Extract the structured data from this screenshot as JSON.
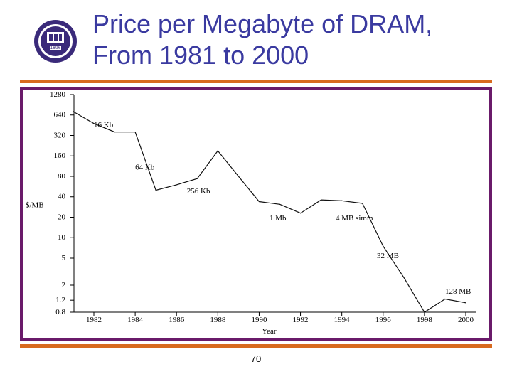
{
  "slide": {
    "title_line1": "Price per Megabyte of DRAM,",
    "title_line2": "From 1981 to 2000",
    "page_number": "70",
    "logo_text": "1896",
    "colors": {
      "title": "#3a3aa0",
      "rule": "#d86a1e",
      "frame": "#6a1a6a",
      "logo": "#3a2a7a"
    }
  },
  "chart_data": {
    "type": "line",
    "title": "",
    "xlabel": "Year",
    "ylabel": "$/MB",
    "y_scale": "log2",
    "xlim": [
      1981,
      2000
    ],
    "ylim": [
      0.8,
      1280
    ],
    "x_ticks": [
      1982,
      1984,
      1986,
      1988,
      1990,
      1992,
      1994,
      1996,
      1998,
      2000
    ],
    "y_ticks": [
      1280,
      640,
      320,
      160,
      80,
      40,
      20,
      10,
      5,
      2,
      1.2,
      0.8
    ],
    "y_tick_labels": [
      "1280",
      "640",
      "320",
      "160",
      "80",
      "40",
      "20",
      "10",
      "5",
      "2",
      "1.2",
      "0.8"
    ],
    "grid": false,
    "series": [
      {
        "x": [
          1981,
          1982,
          1983,
          1984,
          1985,
          1986,
          1987,
          1988,
          1989,
          1990,
          1991,
          1992,
          1993,
          1994,
          1995,
          1996,
          1997,
          1998,
          1999,
          2000
        ],
        "y": [
          720,
          480,
          360,
          360,
          50,
          60,
          74,
          190,
          80,
          34,
          31,
          23,
          36,
          35,
          32,
          7.5,
          2.6,
          0.8,
          1.25,
          1.1
        ]
      }
    ],
    "annotations": [
      {
        "text": "16 Kb",
        "x": 1982,
        "y": 420
      },
      {
        "text": "64 Kb",
        "x": 1984,
        "y": 100
      },
      {
        "text": "256 Kb",
        "x": 1986.5,
        "y": 45
      },
      {
        "text": "1 Mb",
        "x": 1990.5,
        "y": 18
      },
      {
        "text": "4 MB simm",
        "x": 1993.7,
        "y": 18
      },
      {
        "text": "32 MB",
        "x": 1995.7,
        "y": 5
      },
      {
        "text": "128 MB",
        "x": 1999,
        "y": 1.5
      }
    ]
  }
}
